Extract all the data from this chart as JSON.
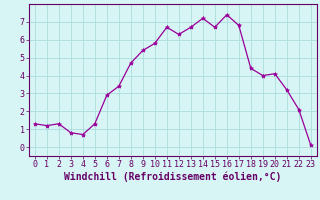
{
  "x": [
    0,
    1,
    2,
    3,
    4,
    5,
    6,
    7,
    8,
    9,
    10,
    11,
    12,
    13,
    14,
    15,
    16,
    17,
    18,
    19,
    20,
    21,
    22,
    23
  ],
  "y": [
    1.3,
    1.2,
    1.3,
    0.8,
    0.7,
    1.3,
    2.9,
    3.4,
    4.7,
    5.4,
    5.8,
    6.7,
    6.3,
    6.7,
    7.2,
    6.7,
    7.4,
    6.8,
    4.4,
    4.0,
    4.1,
    3.2,
    2.1,
    0.1
  ],
  "line_color": "#990099",
  "marker": "*",
  "marker_size": 3,
  "bg_color": "#d8f5f5",
  "grid_color": "#aadddd",
  "xlabel": "Windchill (Refroidissement éolien,°C)",
  "xlim": [
    -0.5,
    23.5
  ],
  "ylim": [
    -0.5,
    8.0
  ],
  "xticks": [
    0,
    1,
    2,
    3,
    4,
    5,
    6,
    7,
    8,
    9,
    10,
    11,
    12,
    13,
    14,
    15,
    16,
    17,
    18,
    19,
    20,
    21,
    22,
    23
  ],
  "yticks": [
    0,
    1,
    2,
    3,
    4,
    5,
    6,
    7
  ],
  "label_fontsize": 7,
  "tick_fontsize": 6
}
